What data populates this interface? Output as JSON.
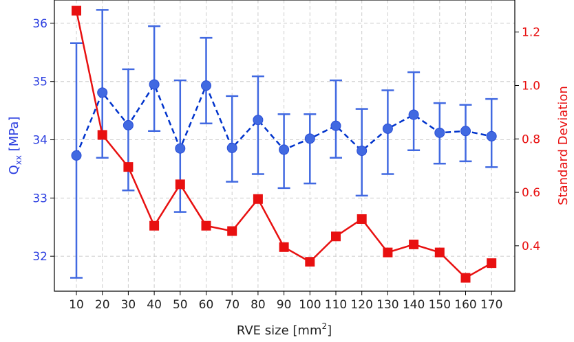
{
  "chart_data": {
    "type": "line",
    "xlabel": "RVE size [mm",
    "xlabel_sup": "2",
    "xlabel_end": "]",
    "ylabel_left": {
      "main": "Q",
      "sub": "xx",
      "rest": " [MPa]"
    },
    "ylabel_right": "Standard Deviation",
    "x_ticks": [
      "10",
      "20",
      "30",
      "40",
      "50",
      "60",
      "70",
      "80",
      "90",
      "100",
      "110",
      "120",
      "130",
      "140",
      "150",
      "160",
      "170"
    ],
    "y_left_ticks": [
      "32",
      "33",
      "34",
      "35",
      "36"
    ],
    "y_right_ticks": [
      "0.4",
      "0.6",
      "0.8",
      "1.0",
      "1.2"
    ],
    "y_left_range": [
      31.4,
      36.4
    ],
    "y_right_range": [
      0.23,
      1.32
    ],
    "grid": true,
    "series": [
      {
        "axis": "left",
        "color": "#0033cc",
        "errorbar_color": "#4169e1",
        "marker": "circle",
        "linestyle": "dashed",
        "x": [
          10,
          20,
          30,
          40,
          50,
          60,
          70,
          80,
          90,
          100,
          110,
          120,
          130,
          140,
          150,
          160,
          170
        ],
        "y": [
          33.73,
          34.81,
          34.25,
          34.95,
          33.85,
          34.93,
          33.86,
          34.34,
          33.83,
          34.02,
          34.24,
          33.81,
          34.19,
          34.43,
          34.12,
          34.15,
          34.06
        ],
        "err_low": [
          31.63,
          33.69,
          33.13,
          34.15,
          32.76,
          34.28,
          33.28,
          33.41,
          33.17,
          33.25,
          33.69,
          33.04,
          33.41,
          33.82,
          33.59,
          33.63,
          33.53
        ],
        "err_high": [
          35.66,
          36.23,
          35.21,
          35.95,
          35.02,
          35.75,
          34.75,
          35.09,
          34.44,
          34.44,
          35.02,
          34.53,
          34.85,
          35.16,
          34.63,
          34.6,
          34.7
        ]
      },
      {
        "axis": "right",
        "color": "#e81010",
        "marker": "square",
        "linestyle": "solid",
        "x": [
          10,
          20,
          30,
          40,
          50,
          60,
          70,
          80,
          90,
          100,
          110,
          120,
          130,
          140,
          150,
          160,
          170
        ],
        "y": [
          1.28,
          0.815,
          0.695,
          0.475,
          0.63,
          0.475,
          0.455,
          0.575,
          0.395,
          0.34,
          0.435,
          0.5,
          0.375,
          0.405,
          0.375,
          0.28,
          0.335
        ]
      }
    ]
  }
}
